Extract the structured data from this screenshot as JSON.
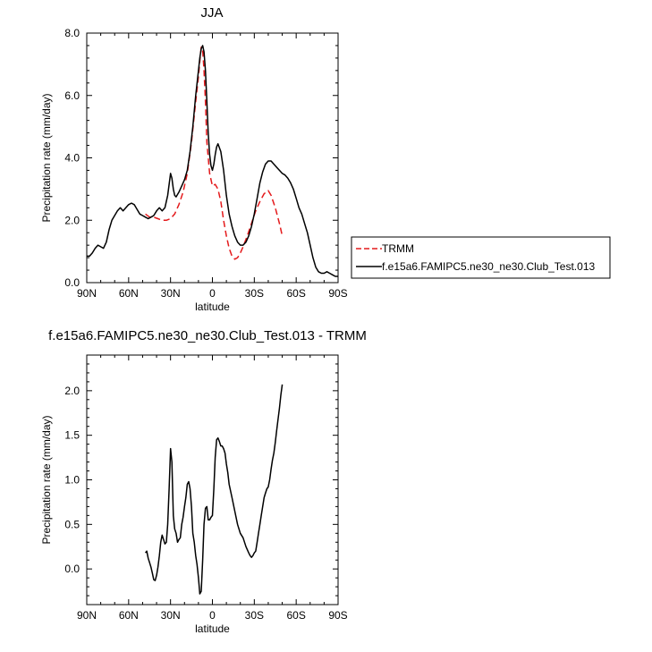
{
  "chart_data": [
    {
      "type": "line",
      "title": "JJA",
      "xlabel": "latitude",
      "ylabel": "Precipitation rate (mm/day)",
      "xlim": [
        -90,
        90
      ],
      "ylim": [
        0,
        8
      ],
      "xticks": [
        -90,
        -60,
        -30,
        0,
        30,
        60,
        90
      ],
      "xtick_labels": [
        "90N",
        "60N",
        "30N",
        "0",
        "30S",
        "60S",
        "90S"
      ],
      "yticks": [
        0,
        2,
        4,
        6,
        8
      ],
      "ytick_labels": [
        "0.0",
        "2.0",
        "4.0",
        "6.0",
        "8.0"
      ],
      "grid": false,
      "legend": "right",
      "series": [
        {
          "name": "TRMM",
          "color": "#e41a1c",
          "dash": "dashed",
          "x": [
            -48,
            -45,
            -42,
            -39,
            -36,
            -33,
            -30,
            -27,
            -24,
            -21,
            -18,
            -15,
            -12,
            -10,
            -9,
            -8,
            -7,
            -6,
            -5,
            -4,
            -2,
            0,
            2,
            4,
            6,
            8,
            10,
            12,
            14,
            16,
            18,
            20,
            22,
            25,
            28,
            31,
            34,
            37,
            40,
            42,
            45,
            48,
            50
          ],
          "y": [
            2.2,
            2.1,
            2.1,
            2.05,
            2.0,
            2.0,
            2.05,
            2.2,
            2.5,
            2.9,
            3.5,
            4.5,
            5.8,
            6.6,
            7.1,
            7.55,
            7.45,
            6.8,
            5.8,
            4.5,
            3.5,
            3.1,
            3.15,
            3.0,
            2.6,
            2.0,
            1.5,
            1.1,
            0.85,
            0.75,
            0.8,
            0.95,
            1.15,
            1.5,
            1.9,
            2.3,
            2.6,
            2.85,
            2.95,
            2.8,
            2.4,
            1.9,
            1.5
          ]
        },
        {
          "name": "f.e15a6.FAMIPC5.ne30_ne30.Club_Test.013",
          "color": "#000000",
          "dash": "solid",
          "x": [
            -90,
            -88,
            -86,
            -84,
            -82,
            -80,
            -78,
            -76,
            -74,
            -72,
            -70,
            -68,
            -66,
            -64,
            -62,
            -60,
            -58,
            -56,
            -54,
            -52,
            -50,
            -48,
            -46,
            -44,
            -42,
            -40,
            -38,
            -36,
            -34,
            -32,
            -30,
            -29,
            -28,
            -27,
            -26,
            -24,
            -22,
            -20,
            -18,
            -16,
            -14,
            -12,
            -10,
            -9,
            -8,
            -7,
            -6,
            -5,
            -4,
            -3,
            -2,
            -1,
            0,
            1,
            2,
            3,
            4,
            6,
            8,
            10,
            12,
            14,
            16,
            18,
            20,
            22,
            24,
            26,
            28,
            30,
            32,
            34,
            36,
            38,
            40,
            42,
            44,
            46,
            48,
            50,
            52,
            54,
            56,
            58,
            60,
            62,
            64,
            66,
            68,
            70,
            72,
            74,
            76,
            78,
            80,
            82,
            84,
            86,
            88,
            90
          ],
          "y": [
            0.85,
            0.85,
            0.95,
            1.1,
            1.2,
            1.15,
            1.1,
            1.3,
            1.7,
            2.0,
            2.15,
            2.3,
            2.4,
            2.3,
            2.4,
            2.5,
            2.55,
            2.5,
            2.35,
            2.2,
            2.15,
            2.1,
            2.05,
            2.1,
            2.15,
            2.3,
            2.4,
            2.3,
            2.4,
            2.8,
            3.5,
            3.35,
            3.0,
            2.8,
            2.75,
            2.9,
            3.1,
            3.3,
            3.6,
            4.2,
            5.0,
            6.0,
            6.8,
            7.2,
            7.5,
            7.6,
            7.4,
            6.8,
            5.8,
            4.8,
            4.1,
            3.75,
            3.6,
            3.8,
            4.1,
            4.35,
            4.45,
            4.2,
            3.6,
            2.8,
            2.2,
            1.8,
            1.5,
            1.3,
            1.2,
            1.2,
            1.3,
            1.5,
            1.8,
            2.2,
            2.7,
            3.2,
            3.55,
            3.8,
            3.9,
            3.9,
            3.8,
            3.7,
            3.6,
            3.5,
            3.45,
            3.35,
            3.2,
            3.0,
            2.7,
            2.4,
            2.2,
            1.9,
            1.6,
            1.2,
            0.8,
            0.5,
            0.35,
            0.3,
            0.3,
            0.35,
            0.3,
            0.25,
            0.2,
            0.2
          ]
        }
      ]
    },
    {
      "type": "line",
      "title": "f.e15a6.FAMIPC5.ne30_ne30.Club_Test.013 - TRMM",
      "xlabel": "latitude",
      "ylabel": "Precipitation rate (mm/day)",
      "xlim": [
        -90,
        90
      ],
      "ylim": [
        -0.4,
        2.4
      ],
      "xticks": [
        -90,
        -60,
        -30,
        0,
        30,
        60,
        90
      ],
      "xtick_labels": [
        "90N",
        "60N",
        "30N",
        "0",
        "30S",
        "60S",
        "90S"
      ],
      "yticks": [
        0,
        0.5,
        1.0,
        1.5,
        2.0
      ],
      "ytick_labels": [
        "0.0",
        "0.5",
        "1.0",
        "1.5",
        "2.0"
      ],
      "grid": false,
      "series": [
        {
          "color": "#000000",
          "dash": "solid",
          "x": [
            -48,
            -47,
            -46,
            -45,
            -44,
            -43,
            -42,
            -41,
            -40,
            -39,
            -38,
            -37,
            -36,
            -35,
            -34,
            -33,
            -32,
            -31,
            -30,
            -29,
            -28,
            -27,
            -26,
            -25,
            -24,
            -23,
            -22,
            -21,
            -20,
            -19,
            -18,
            -17,
            -16,
            -15,
            -14,
            -13,
            -12,
            -11,
            -10,
            -9,
            -8,
            -7,
            -6,
            -5,
            -4,
            -3,
            -2,
            -1,
            0,
            1,
            2,
            3,
            4,
            5,
            6,
            7,
            8,
            9,
            10,
            11,
            12,
            14,
            16,
            18,
            20,
            22,
            24,
            26,
            27,
            28,
            29,
            30,
            31,
            32,
            33,
            34,
            35,
            36,
            37,
            38,
            39,
            40,
            41,
            42,
            43,
            44,
            45,
            46,
            47,
            48,
            49,
            50
          ],
          "y": [
            0.18,
            0.2,
            0.12,
            0.07,
            0.02,
            -0.05,
            -0.12,
            -0.13,
            -0.07,
            0.02,
            0.15,
            0.3,
            0.38,
            0.33,
            0.28,
            0.3,
            0.5,
            0.9,
            1.35,
            1.2,
            0.6,
            0.45,
            0.4,
            0.3,
            0.33,
            0.35,
            0.5,
            0.58,
            0.7,
            0.8,
            0.95,
            0.98,
            0.9,
            0.7,
            0.4,
            0.3,
            0.15,
            0.05,
            -0.1,
            -0.28,
            -0.25,
            0.1,
            0.5,
            0.68,
            0.7,
            0.55,
            0.55,
            0.58,
            0.6,
            0.9,
            1.25,
            1.45,
            1.47,
            1.43,
            1.38,
            1.38,
            1.35,
            1.3,
            1.18,
            1.08,
            0.95,
            0.8,
            0.65,
            0.5,
            0.4,
            0.35,
            0.25,
            0.18,
            0.15,
            0.13,
            0.15,
            0.18,
            0.2,
            0.3,
            0.4,
            0.5,
            0.6,
            0.7,
            0.8,
            0.85,
            0.9,
            0.92,
            1.0,
            1.12,
            1.22,
            1.3,
            1.42,
            1.55,
            1.68,
            1.8,
            1.95,
            2.07
          ]
        }
      ]
    }
  ]
}
